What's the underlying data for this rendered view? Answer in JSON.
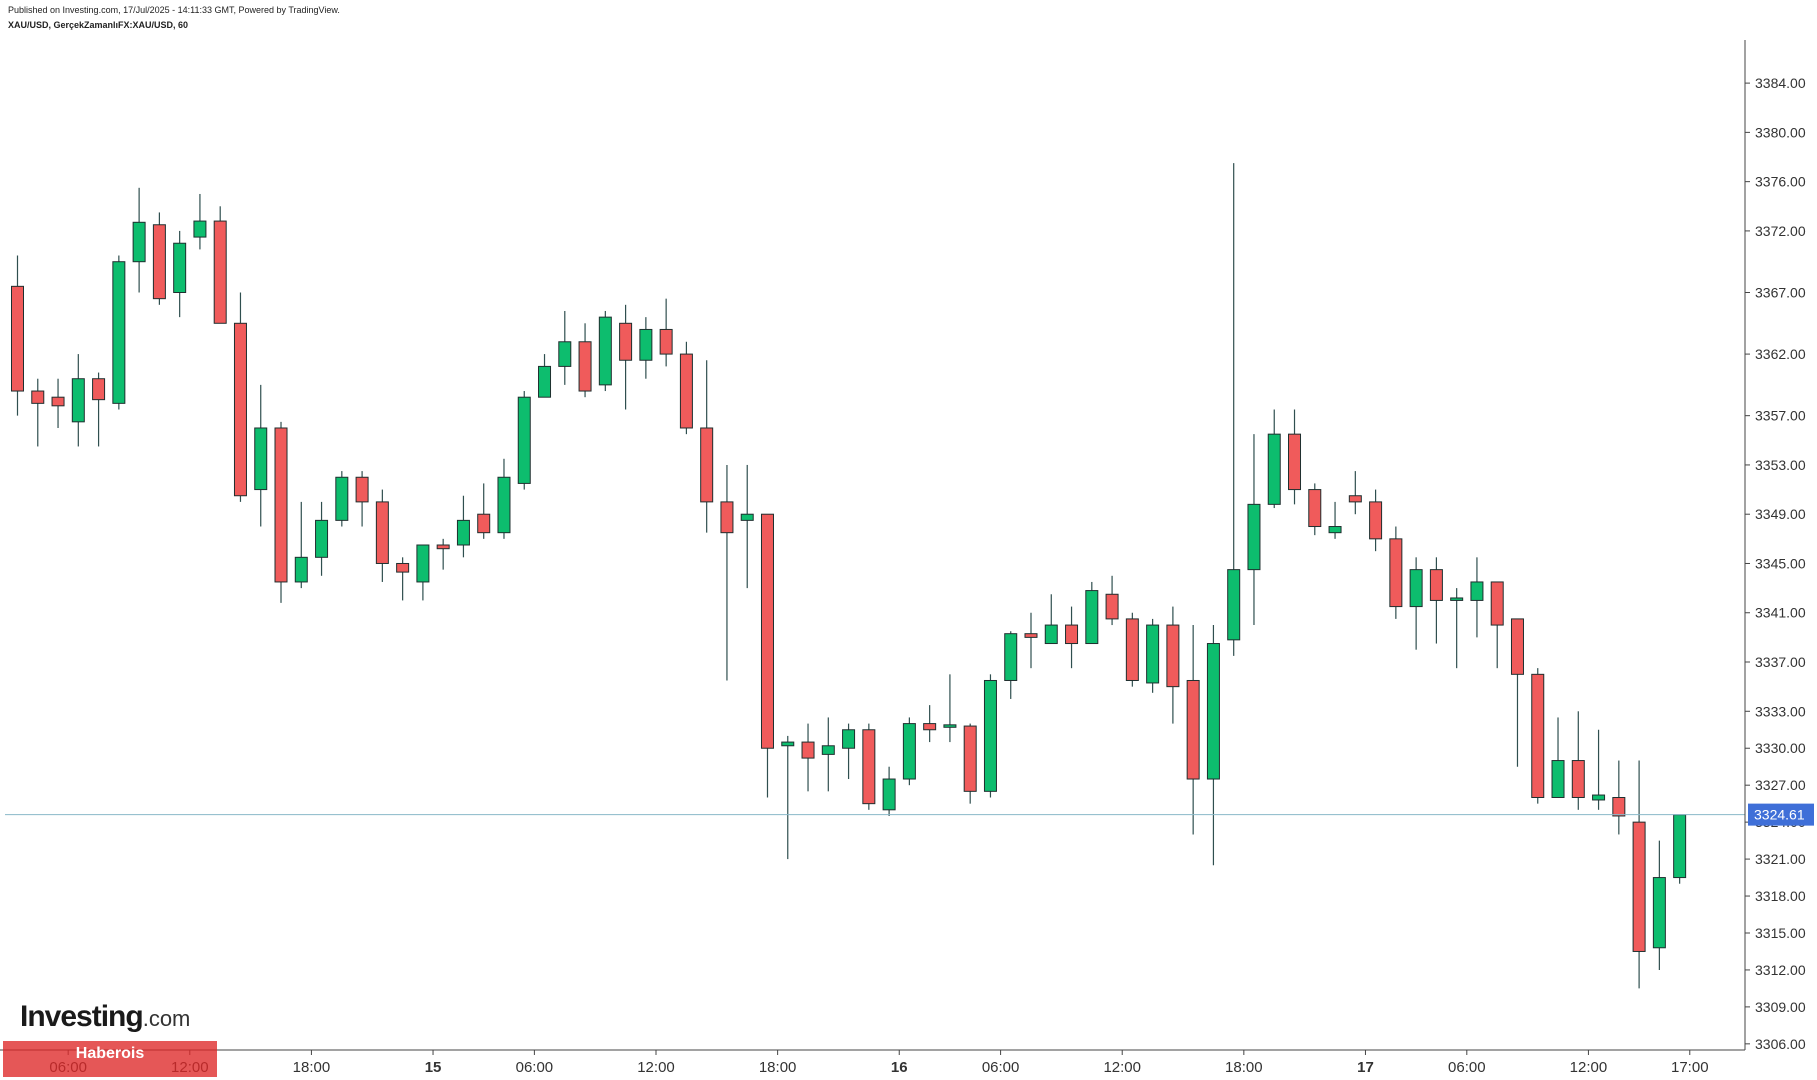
{
  "header": {
    "published_line": "Published on Investing.com, 17/Jul/2025 - 14:11:33 GMT, Powered by TradingView.",
    "symbol_line": "XAU/USD, GerçekZamanlıFX:XAU/USD, 60"
  },
  "logo": {
    "brand": "Investing",
    "suffix": ".com"
  },
  "watermark": {
    "text": "Haberois"
  },
  "colors": {
    "up": "#0dbd6e",
    "down": "#f05b5b",
    "wick": "#2f4f4f",
    "price_tag": "#3f6fd8"
  },
  "chart_data": {
    "type": "candlestick",
    "price_axis_labels": [
      "3384.00",
      "3380.00",
      "3376.00",
      "3372.00",
      "3367.00",
      "3362.00",
      "3357.00",
      "3353.00",
      "3349.00",
      "3345.00",
      "3341.00",
      "3337.00",
      "3333.00",
      "3330.00",
      "3327.00",
      "3324.00",
      "3321.00",
      "3318.00",
      "3315.00",
      "3312.00",
      "3309.00",
      "3306.00"
    ],
    "time_axis_labels": [
      {
        "text": "06:00",
        "index": 2.5,
        "bold": false
      },
      {
        "text": "12:00",
        "index": 8.5,
        "bold": false
      },
      {
        "text": "18:00",
        "index": 14.5,
        "bold": false
      },
      {
        "text": "15",
        "index": 20.5,
        "bold": true
      },
      {
        "text": "06:00",
        "index": 25.5,
        "bold": false
      },
      {
        "text": "12:00",
        "index": 31.5,
        "bold": false
      },
      {
        "text": "18:00",
        "index": 37.5,
        "bold": false
      },
      {
        "text": "16",
        "index": 43.5,
        "bold": true
      },
      {
        "text": "06:00",
        "index": 48.5,
        "bold": false
      },
      {
        "text": "12:00",
        "index": 54.5,
        "bold": false
      },
      {
        "text": "18:00",
        "index": 60.5,
        "bold": false
      },
      {
        "text": "17",
        "index": 66.5,
        "bold": true
      },
      {
        "text": "06:00",
        "index": 71.5,
        "bold": false
      },
      {
        "text": "12:00",
        "index": 77.5,
        "bold": false
      },
      {
        "text": "17:00",
        "index": 82.5,
        "bold": false
      }
    ],
    "ylim": [
      3305.5,
      3387.5
    ],
    "current_price": 3324.61,
    "current_price_label": "3324.61",
    "candles": [
      {
        "o": 3367.5,
        "h": 3370.0,
        "l": 3357.0,
        "c": 3359.0
      },
      {
        "o": 3359.0,
        "h": 3360.0,
        "l": 3354.5,
        "c": 3358.0
      },
      {
        "o": 3358.5,
        "h": 3360.0,
        "l": 3356.0,
        "c": 3357.8
      },
      {
        "o": 3356.5,
        "h": 3362.0,
        "l": 3354.5,
        "c": 3360.0
      },
      {
        "o": 3360.0,
        "h": 3360.5,
        "l": 3354.5,
        "c": 3358.3
      },
      {
        "o": 3358.0,
        "h": 3370.0,
        "l": 3357.5,
        "c": 3369.5
      },
      {
        "o": 3369.5,
        "h": 3375.5,
        "l": 3367.0,
        "c": 3372.7
      },
      {
        "o": 3372.5,
        "h": 3373.5,
        "l": 3366.0,
        "c": 3366.5
      },
      {
        "o": 3367.0,
        "h": 3372.0,
        "l": 3365.0,
        "c": 3371.0
      },
      {
        "o": 3371.5,
        "h": 3375.0,
        "l": 3370.5,
        "c": 3372.8
      },
      {
        "o": 3372.8,
        "h": 3374.0,
        "l": 3364.5,
        "c": 3364.5
      },
      {
        "o": 3364.5,
        "h": 3367.0,
        "l": 3350.0,
        "c": 3350.5
      },
      {
        "o": 3351.0,
        "h": 3359.5,
        "l": 3348.0,
        "c": 3356.0
      },
      {
        "o": 3356.0,
        "h": 3356.5,
        "l": 3341.8,
        "c": 3343.5
      },
      {
        "o": 3343.5,
        "h": 3350.0,
        "l": 3343.0,
        "c": 3345.5
      },
      {
        "o": 3345.5,
        "h": 3350.0,
        "l": 3344.0,
        "c": 3348.5
      },
      {
        "o": 3348.5,
        "h": 3352.5,
        "l": 3348.0,
        "c": 3352.0
      },
      {
        "o": 3352.0,
        "h": 3352.5,
        "l": 3348.0,
        "c": 3350.0
      },
      {
        "o": 3350.0,
        "h": 3351.0,
        "l": 3343.5,
        "c": 3345.0
      },
      {
        "o": 3345.0,
        "h": 3345.5,
        "l": 3342.0,
        "c": 3344.3
      },
      {
        "o": 3343.5,
        "h": 3346.5,
        "l": 3342.0,
        "c": 3346.5
      },
      {
        "o": 3346.5,
        "h": 3347.0,
        "l": 3344.5,
        "c": 3346.2
      },
      {
        "o": 3346.5,
        "h": 3350.5,
        "l": 3345.5,
        "c": 3348.5
      },
      {
        "o": 3349.0,
        "h": 3351.5,
        "l": 3347.0,
        "c": 3347.5
      },
      {
        "o": 3347.5,
        "h": 3353.5,
        "l": 3347.0,
        "c": 3352.0
      },
      {
        "o": 3351.5,
        "h": 3359.0,
        "l": 3351.0,
        "c": 3358.5
      },
      {
        "o": 3358.5,
        "h": 3362.0,
        "l": 3358.5,
        "c": 3361.0
      },
      {
        "o": 3361.0,
        "h": 3365.5,
        "l": 3359.5,
        "c": 3363.0
      },
      {
        "o": 3363.0,
        "h": 3364.5,
        "l": 3358.5,
        "c": 3359.0
      },
      {
        "o": 3359.5,
        "h": 3365.5,
        "l": 3359.0,
        "c": 3365.0
      },
      {
        "o": 3364.5,
        "h": 3366.0,
        "l": 3357.5,
        "c": 3361.5
      },
      {
        "o": 3361.5,
        "h": 3365.0,
        "l": 3360.0,
        "c": 3364.0
      },
      {
        "o": 3364.0,
        "h": 3366.5,
        "l": 3361.0,
        "c": 3362.0
      },
      {
        "o": 3362.0,
        "h": 3363.0,
        "l": 3355.5,
        "c": 3356.0
      },
      {
        "o": 3356.0,
        "h": 3361.5,
        "l": 3347.5,
        "c": 3350.0
      },
      {
        "o": 3350.0,
        "h": 3353.0,
        "l": 3335.5,
        "c": 3347.5
      },
      {
        "o": 3348.5,
        "h": 3353.0,
        "l": 3343.0,
        "c": 3349.0
      },
      {
        "o": 3349.0,
        "h": 3349.0,
        "l": 3326.0,
        "c": 3330.0
      },
      {
        "o": 3330.2,
        "h": 3331.0,
        "l": 3321.0,
        "c": 3330.5
      },
      {
        "o": 3330.5,
        "h": 3332.0,
        "l": 3326.5,
        "c": 3329.2
      },
      {
        "o": 3329.5,
        "h": 3332.5,
        "l": 3326.5,
        "c": 3330.2
      },
      {
        "o": 3330.0,
        "h": 3332.0,
        "l": 3327.5,
        "c": 3331.5
      },
      {
        "o": 3331.5,
        "h": 3332.0,
        "l": 3325.0,
        "c": 3325.5
      },
      {
        "o": 3325.0,
        "h": 3328.5,
        "l": 3324.5,
        "c": 3327.5
      },
      {
        "o": 3327.5,
        "h": 3332.5,
        "l": 3327.0,
        "c": 3332.0
      },
      {
        "o": 3332.0,
        "h": 3333.5,
        "l": 3330.5,
        "c": 3331.5
      },
      {
        "o": 3331.7,
        "h": 3336.0,
        "l": 3330.5,
        "c": 3331.9
      },
      {
        "o": 3331.8,
        "h": 3332.0,
        "l": 3325.5,
        "c": 3326.5
      },
      {
        "o": 3326.5,
        "h": 3336.0,
        "l": 3326.0,
        "c": 3335.5
      },
      {
        "o": 3335.5,
        "h": 3339.5,
        "l": 3334.0,
        "c": 3339.3
      },
      {
        "o": 3339.3,
        "h": 3341.0,
        "l": 3336.5,
        "c": 3339.0
      },
      {
        "o": 3338.5,
        "h": 3342.5,
        "l": 3338.5,
        "c": 3340.0
      },
      {
        "o": 3340.0,
        "h": 3341.5,
        "l": 3336.5,
        "c": 3338.5
      },
      {
        "o": 3338.5,
        "h": 3343.5,
        "l": 3338.5,
        "c": 3342.8
      },
      {
        "o": 3342.5,
        "h": 3344.0,
        "l": 3340.0,
        "c": 3340.5
      },
      {
        "o": 3340.5,
        "h": 3341.0,
        "l": 3335.0,
        "c": 3335.5
      },
      {
        "o": 3335.3,
        "h": 3340.5,
        "l": 3334.5,
        "c": 3340.0
      },
      {
        "o": 3340.0,
        "h": 3341.5,
        "l": 3332.0,
        "c": 3335.0
      },
      {
        "o": 3335.5,
        "h": 3340.0,
        "l": 3323.0,
        "c": 3327.5
      },
      {
        "o": 3327.5,
        "h": 3340.0,
        "l": 3320.5,
        "c": 3338.5
      },
      {
        "o": 3338.8,
        "h": 3377.5,
        "l": 3337.5,
        "c": 3344.5
      },
      {
        "o": 3344.5,
        "h": 3355.5,
        "l": 3340.0,
        "c": 3349.8
      },
      {
        "o": 3349.8,
        "h": 3357.5,
        "l": 3349.5,
        "c": 3355.5
      },
      {
        "o": 3355.5,
        "h": 3357.5,
        "l": 3349.8,
        "c": 3351.0
      },
      {
        "o": 3351.0,
        "h": 3351.5,
        "l": 3347.3,
        "c": 3348.0
      },
      {
        "o": 3347.5,
        "h": 3350.0,
        "l": 3347.0,
        "c": 3348.0
      },
      {
        "o": 3350.5,
        "h": 3352.5,
        "l": 3349.0,
        "c": 3350.0
      },
      {
        "o": 3350.0,
        "h": 3351.0,
        "l": 3346.0,
        "c": 3347.0
      },
      {
        "o": 3347.0,
        "h": 3348.0,
        "l": 3340.5,
        "c": 3341.5
      },
      {
        "o": 3341.5,
        "h": 3345.5,
        "l": 3338.0,
        "c": 3344.5
      },
      {
        "o": 3344.5,
        "h": 3345.5,
        "l": 3338.5,
        "c": 3342.0
      },
      {
        "o": 3342.0,
        "h": 3343.0,
        "l": 3336.5,
        "c": 3342.2
      },
      {
        "o": 3342.0,
        "h": 3345.5,
        "l": 3339.0,
        "c": 3343.5
      },
      {
        "o": 3343.5,
        "h": 3343.5,
        "l": 3336.5,
        "c": 3340.0
      },
      {
        "o": 3340.5,
        "h": 3340.5,
        "l": 3328.5,
        "c": 3336.0
      },
      {
        "o": 3336.0,
        "h": 3336.5,
        "l": 3325.5,
        "c": 3326.0
      },
      {
        "o": 3326.0,
        "h": 3332.5,
        "l": 3326.0,
        "c": 3329.0
      },
      {
        "o": 3329.0,
        "h": 3333.0,
        "l": 3325.0,
        "c": 3326.0
      },
      {
        "o": 3325.8,
        "h": 3331.5,
        "l": 3325.0,
        "c": 3326.2
      },
      {
        "o": 3326.0,
        "h": 3329.0,
        "l": 3323.0,
        "c": 3324.5
      },
      {
        "o": 3324.0,
        "h": 3329.0,
        "l": 3310.5,
        "c": 3313.5
      },
      {
        "o": 3313.8,
        "h": 3322.5,
        "l": 3312.0,
        "c": 3319.5
      },
      {
        "o": 3319.5,
        "h": 3324.6,
        "l": 3319.0,
        "c": 3324.6
      }
    ]
  }
}
